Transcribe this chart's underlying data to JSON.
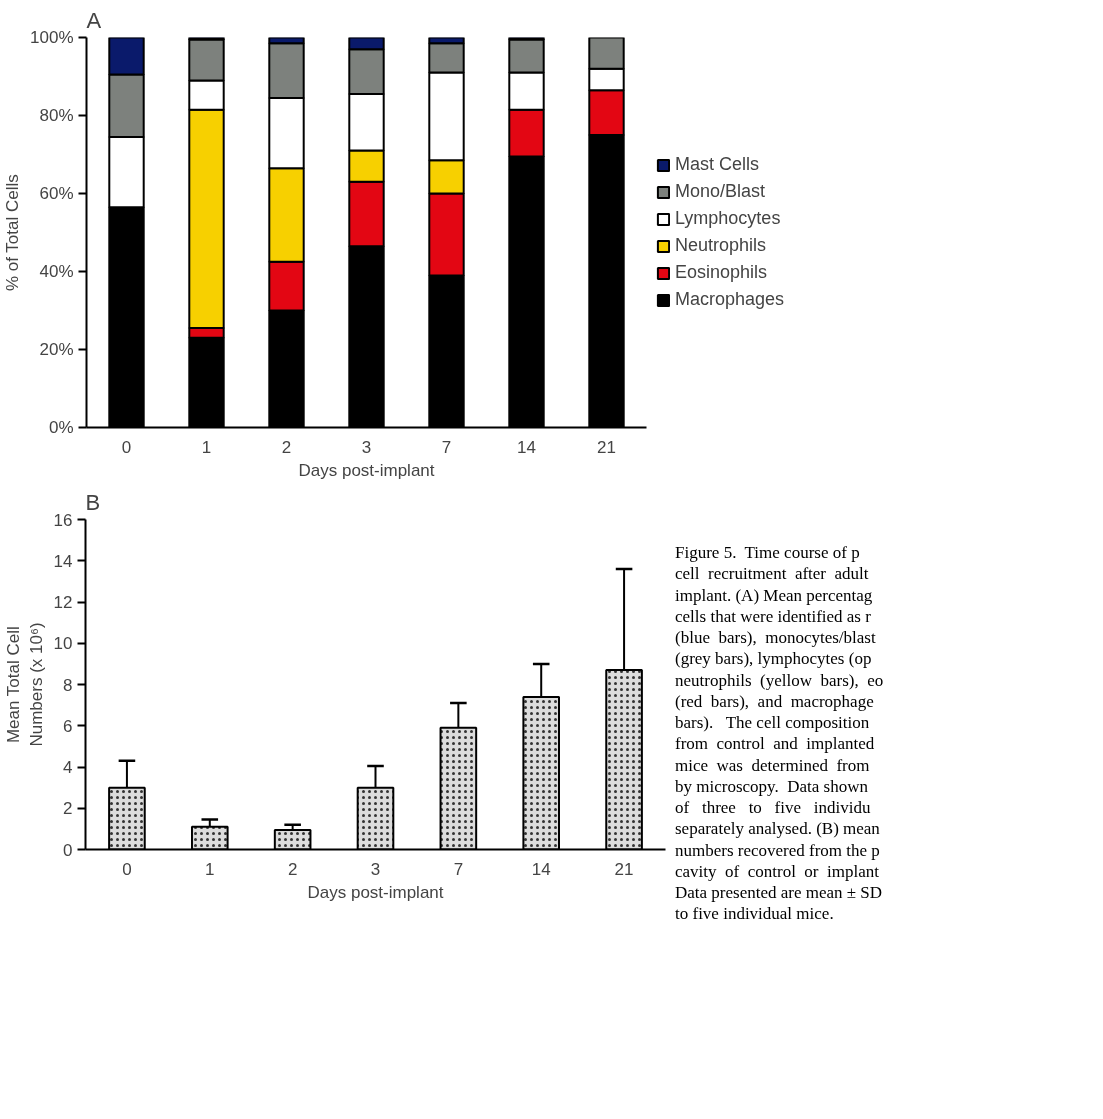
{
  "chart_data": [
    {
      "type": "bar",
      "title": "A",
      "xlabel": "Days post-implant",
      "ylabel": "% of Total Cells",
      "categories": [
        "0",
        "1",
        "2",
        "3",
        "7",
        "14",
        "21"
      ],
      "stacked": true,
      "ylim": [
        0,
        100
      ],
      "yticks": [
        {
          "value": 0,
          "label": "0%"
        },
        {
          "value": 20,
          "label": "20%"
        },
        {
          "value": 40,
          "label": "40%"
        },
        {
          "value": 60,
          "label": "60%"
        },
        {
          "value": 80,
          "label": "80%"
        },
        {
          "value": 100,
          "label": "100%"
        }
      ],
      "grid": false,
      "legend": "right",
      "series": [
        {
          "name": "Macrophages",
          "color": "#000000",
          "values": [
            56.5,
            23,
            30,
            46.5,
            39,
            69.5,
            75
          ]
        },
        {
          "name": "Eosinophils",
          "color": "#e30613",
          "values": [
            0,
            2.5,
            12.5,
            16.5,
            21,
            12,
            11.5
          ]
        },
        {
          "name": "Neutrophils",
          "color": "#f7d000",
          "values": [
            0,
            56,
            24,
            8,
            8.5,
            0,
            0
          ]
        },
        {
          "name": "Lymphocytes",
          "color": "#ffffff",
          "values": [
            18,
            7.5,
            18,
            14.5,
            22.5,
            9.5,
            5.5
          ]
        },
        {
          "name": "Mono/Blast",
          "color": "#7d817d",
          "values": [
            16,
            10.5,
            14,
            11.5,
            7.5,
            8.5,
            8
          ]
        },
        {
          "name": "Mast Cells",
          "color": "#0a1a6b",
          "values": [
            9.5,
            0.5,
            1.5,
            3,
            1.5,
            0.5,
            0
          ]
        }
      ]
    },
    {
      "type": "bar",
      "title": "B",
      "xlabel": "Days post-implant",
      "ylabel": "Mean Total Cell\nNumbers (x 10⁶)",
      "categories": [
        "0",
        "1",
        "2",
        "3",
        "7",
        "14",
        "21"
      ],
      "ylim": [
        0,
        16
      ],
      "yticks": [
        0,
        2,
        4,
        6,
        8,
        10,
        12,
        14,
        16
      ],
      "grid": false,
      "color": "#dcdcdc",
      "values": [
        3.0,
        1.1,
        0.95,
        3.0,
        5.9,
        7.4,
        8.7
      ],
      "errors": [
        [
          3.0,
          4.3
        ],
        [
          1.1,
          1.45
        ],
        [
          0.95,
          1.2
        ],
        [
          3.0,
          4.05
        ],
        [
          5.9,
          7.1
        ],
        [
          7.4,
          9.0
        ],
        [
          8.7,
          13.6
        ]
      ],
      "annotations": [
        "Figure 5.  Time course of p\ncell  recruitment  after  adult\nimplant. (A) Mean percentag\ncells that were identified as r\n(blue  bars),  monocytes/blast\n(grey bars), lymphocytes (op\nneutrophils  (yellow  bars),  eo\n(red  bars),  and  macrophage\nbars).   The cell composition\nfrom  control  and  implanted\nmice  was  determined  from\nby microscopy.  Data shown\nof   three   to   five   individu\nseparately analysed. (B) mean\nnumbers recovered from the p\ncavity  of  control  or  implant\nData presented are mean ± SD\nto five individual mice."
      ]
    }
  ]
}
